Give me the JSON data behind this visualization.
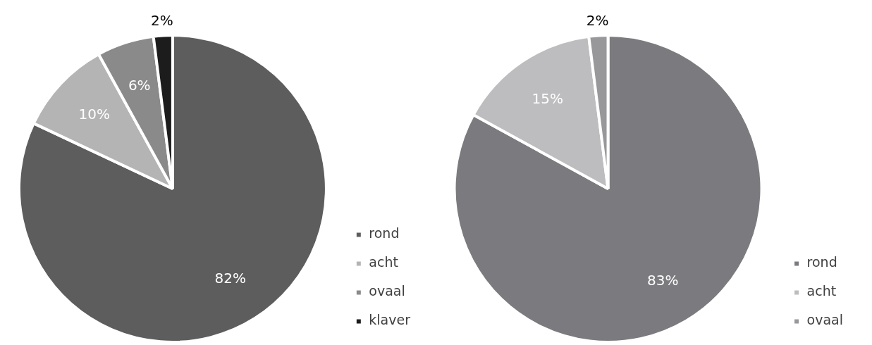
{
  "chart_data": [
    {
      "type": "pie",
      "categories": [
        "rond",
        "acht",
        "ovaal",
        "klaver"
      ],
      "values": [
        82,
        10,
        6,
        2
      ],
      "value_labels": [
        "82%",
        "10%",
        "6%",
        "2%"
      ],
      "colors": [
        "#5d5d5d",
        "#b4b4b4",
        "#8a8a8a",
        "#1c1c1c"
      ],
      "legend": "bottom right"
    },
    {
      "type": "pie",
      "categories": [
        "rond",
        "acht",
        "ovaal"
      ],
      "values": [
        83,
        15,
        2
      ],
      "value_labels": [
        "83%",
        "15%",
        "2%"
      ],
      "colors": [
        "#7b7b7f",
        "#bdbdc0",
        "#98989b"
      ],
      "legend": "bottom right"
    }
  ]
}
